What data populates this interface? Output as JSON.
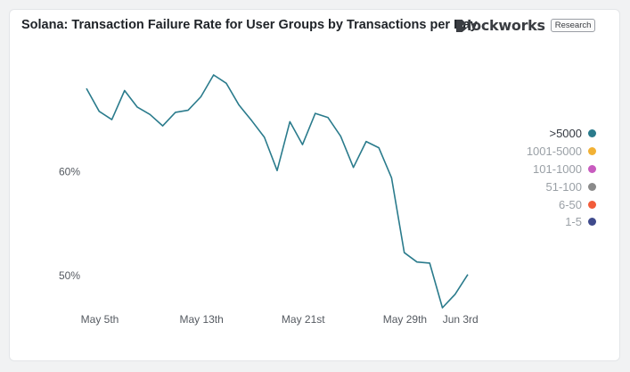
{
  "header": {
    "title": "Solana: Transaction Failure Rate for User Groups by Transactions per Day",
    "brand": "lockworks",
    "badge": "Research"
  },
  "chart_data": {
    "type": "line",
    "title": "Solana: Transaction Failure Rate for User Groups by Transactions per Day",
    "xlabel": "",
    "ylabel": "",
    "x_ticks": [
      "May 5th",
      "May 13th",
      "May 21st",
      "May 29th",
      "Jun 3rd"
    ],
    "y_ticks": [
      {
        "value": 60,
        "label": "60%"
      },
      {
        "value": 50,
        "label": "50%"
      }
    ],
    "ylim": [
      46.9,
      70.5
    ],
    "grid": false,
    "legend_position": "right",
    "x": [
      "May 5",
      "May 6",
      "May 7",
      "May 8",
      "May 9",
      "May 10",
      "May 11",
      "May 12",
      "May 13",
      "May 14",
      "May 15",
      "May 16",
      "May 17",
      "May 18",
      "May 19",
      "May 20",
      "May 21",
      "May 22",
      "May 23",
      "May 24",
      "May 25",
      "May 26",
      "May 27",
      "May 28",
      "May 29",
      "May 30",
      "May 31",
      "Jun 1",
      "Jun 2",
      "Jun 3",
      "Jun 4"
    ],
    "series": [
      {
        "name": ">5000",
        "color": "#2a7b8c",
        "values": [
          68.0,
          65.8,
          65.0,
          67.8,
          66.2,
          65.5,
          64.4,
          65.7,
          65.9,
          67.2,
          69.3,
          68.5,
          66.4,
          64.9,
          63.3,
          60.1,
          64.8,
          62.6,
          65.6,
          65.2,
          63.4,
          60.4,
          62.9,
          62.3,
          59.4,
          52.2,
          51.3,
          51.2,
          46.9,
          48.2,
          50.1
        ]
      }
    ],
    "legend": [
      {
        "label": ">5000",
        "color": "#2a7b8c",
        "active": true
      },
      {
        "label": "1001-5000",
        "color": "#f2b134",
        "active": false
      },
      {
        "label": "101-1000",
        "color": "#c85bbf",
        "active": false
      },
      {
        "label": "51-100",
        "color": "#8a8a8a",
        "active": false
      },
      {
        "label": "6-50",
        "color": "#f25c3a",
        "active": false
      },
      {
        "label": "1-5",
        "color": "#3f4a8c",
        "active": false
      }
    ]
  }
}
